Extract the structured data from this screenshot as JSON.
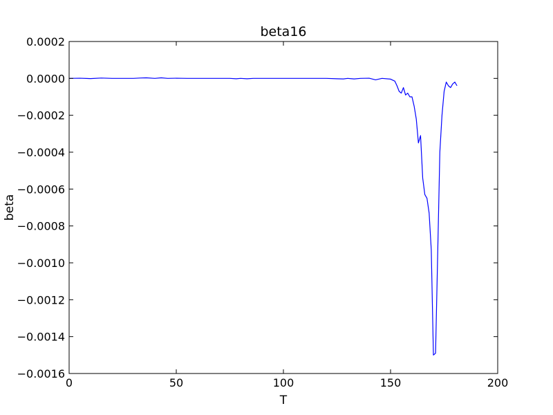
{
  "chart_data": {
    "type": "line",
    "title": "beta16",
    "xlabel": "T",
    "ylabel": "beta",
    "xlim": [
      0,
      200
    ],
    "ylim": [
      -0.0016,
      0.0002
    ],
    "x_ticks": [
      0,
      50,
      100,
      150,
      200
    ],
    "x_tick_labels": [
      "0",
      "50",
      "100",
      "150",
      "200"
    ],
    "y_ticks": [
      0.0002,
      0.0,
      -0.0002,
      -0.0004,
      -0.0006,
      -0.0008,
      -0.001,
      -0.0012,
      -0.0014,
      -0.0016
    ],
    "y_tick_labels": [
      "0.0002",
      "0.0000",
      "−0.0002",
      "−0.0004",
      "−0.0006",
      "−0.0008",
      "−0.0010",
      "−0.0012",
      "−0.0014",
      "−0.0016"
    ],
    "grid": false,
    "legend": "none",
    "series_color": "#0000ff",
    "series": [
      {
        "x": [
          0,
          5,
          10,
          15,
          20,
          25,
          30,
          33,
          36,
          40,
          43,
          46,
          50,
          55,
          60,
          65,
          70,
          75,
          78,
          80,
          83,
          86,
          90,
          95,
          100,
          105,
          110,
          115,
          120,
          125,
          128,
          130,
          133,
          136,
          140,
          143,
          146,
          150,
          152,
          153,
          154,
          155,
          156,
          157,
          158,
          159,
          160,
          161,
          162,
          163,
          164,
          165,
          166,
          167,
          168,
          169,
          170,
          171,
          172,
          173,
          174,
          175,
          176,
          177,
          178,
          179,
          180,
          181
        ],
        "y": [
          0.0,
          1e-06,
          -1e-06,
          2e-06,
          0.0,
          0.0,
          0.0,
          2e-06,
          3e-06,
          0.0,
          3e-06,
          0.0,
          1e-06,
          0.0,
          0.0,
          0.0,
          0.0,
          0.0,
          -2e-06,
          0.0,
          -2e-06,
          0.0,
          0.0,
          0.0,
          0.0,
          0.0,
          0.0,
          0.0,
          0.0,
          -2e-06,
          -3e-06,
          0.0,
          -3e-06,
          0.0,
          1e-06,
          -8e-06,
          0.0,
          -4e-06,
          -1.5e-05,
          -4e-05,
          -7e-05,
          -8e-05,
          -5e-05,
          -9e-05,
          -8e-05,
          -0.0001,
          -0.0001,
          -0.00015,
          -0.00022,
          -0.00035,
          -0.00031,
          -0.00054,
          -0.00063,
          -0.00065,
          -0.00073,
          -0.00093,
          -0.0015,
          -0.00149,
          -0.00095,
          -0.0004,
          -0.0002,
          -7e-05,
          -2e-05,
          -4e-05,
          -5e-05,
          -3e-05,
          -2e-05,
          -4e-05
        ]
      }
    ]
  }
}
